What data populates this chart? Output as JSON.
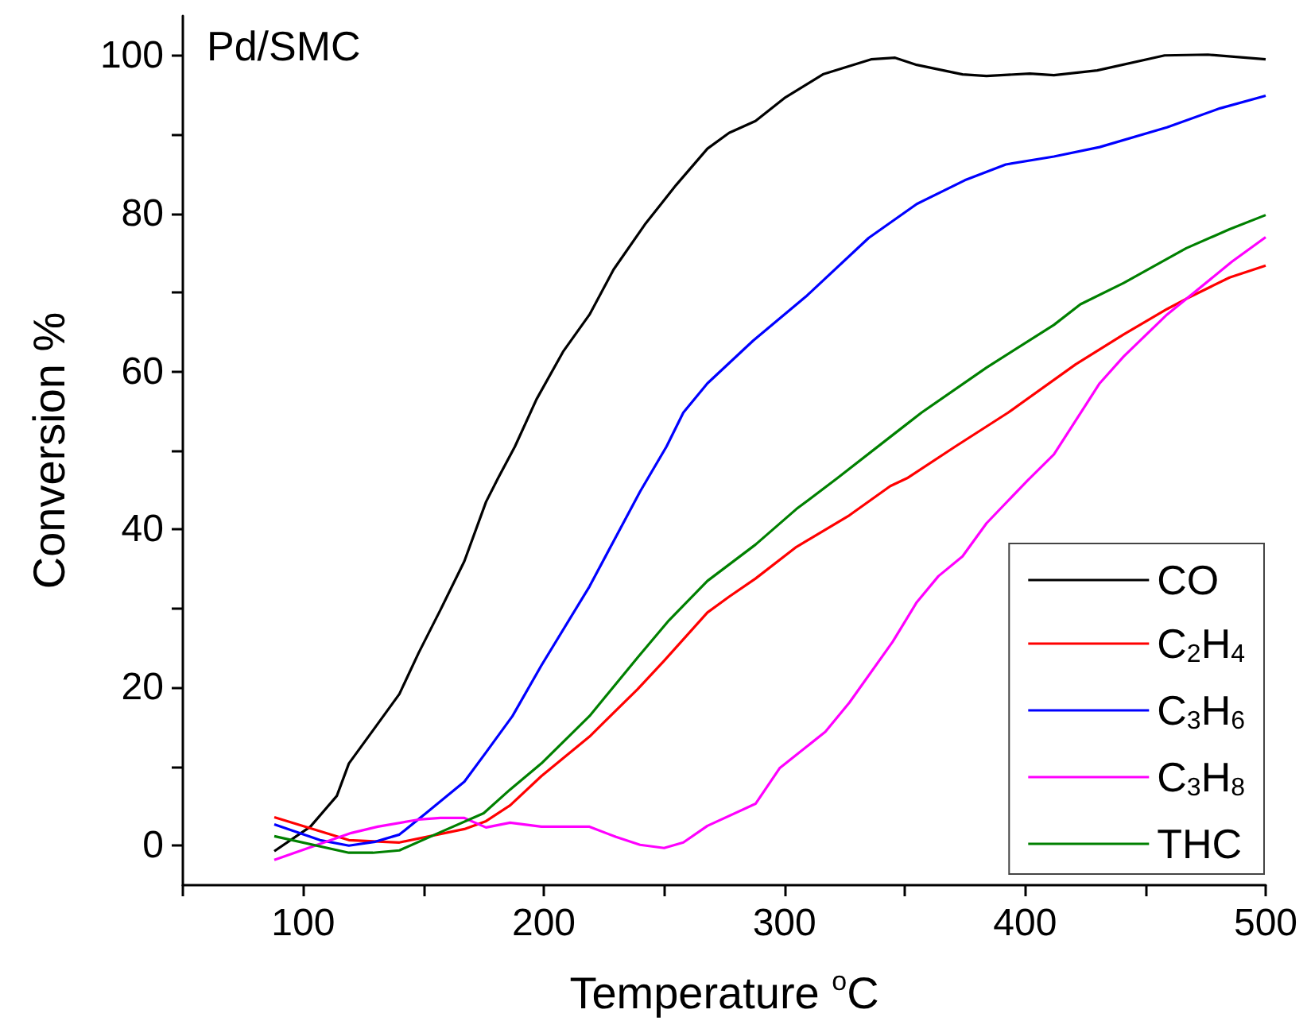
{
  "chart_data": {
    "type": "line",
    "title": "Pd/SMC",
    "xlabel": "Temperature $^{o}$C",
    "ylabel": "Conversion %",
    "xlim": [
      50,
      500
    ],
    "ylim": [
      -5,
      105
    ],
    "xticks": [
      {
        "value": 50,
        "label": null
      },
      100,
      {
        "value": 150,
        "label": null
      },
      200,
      {
        "value": 250,
        "label": null
      },
      300,
      {
        "value": 350,
        "label": null
      },
      400,
      {
        "value": 450,
        "label": null
      },
      500
    ],
    "yticks": [
      0,
      {
        "value": 10,
        "label": null
      },
      20,
      {
        "value": 30,
        "label": null
      },
      40,
      {
        "value": 50,
        "label": null
      },
      60,
      {
        "value": 70,
        "label": null
      },
      80,
      {
        "value": 90,
        "label": null
      },
      100
    ],
    "grid": false,
    "legend": "bottom right",
    "marker": "none",
    "line_style": "solid",
    "series": [
      {
        "name": "CO",
        "color": "#000000",
        "x": [
          88,
          103,
          114,
          119,
          130,
          140,
          148,
          157,
          167,
          176,
          181,
          188,
          197,
          208,
          219,
          229,
          242,
          255,
          268,
          277,
          288,
          300,
          316,
          336,
          346,
          355,
          374,
          384,
          402,
          412,
          430,
          458,
          476,
          500
        ],
        "values": [
          -0.7,
          2.4,
          6.3,
          10.4,
          15,
          19.2,
          24.4,
          29.8,
          36,
          43.5,
          46.5,
          50.5,
          56.5,
          62.5,
          67.2,
          72.9,
          78.6,
          83.6,
          88.2,
          90.2,
          91.7,
          94.6,
          97.6,
          99.5,
          99.7,
          98.8,
          97.6,
          97.4,
          97.7,
          97.5,
          98.1,
          100,
          100.1,
          99.5
        ]
      },
      {
        "name": "C$_{2}$H$_{4}$",
        "color": "#ff0000",
        "x": [
          88,
          119,
          140,
          167,
          176,
          186,
          199,
          219,
          239,
          250,
          268,
          277,
          288,
          305,
          327,
          344,
          351,
          371,
          393,
          421,
          441,
          459,
          467,
          485,
          500
        ],
        "values": [
          3.6,
          0.7,
          0.4,
          2.1,
          3.1,
          5.1,
          8.8,
          13.8,
          19.8,
          23.4,
          29.5,
          31.5,
          33.8,
          37.8,
          41.8,
          45.5,
          46.5,
          50.5,
          54.8,
          60.9,
          64.7,
          67.9,
          69.2,
          71.9,
          73.4
        ]
      },
      {
        "name": "C$_{3}$H$_{6}$",
        "color": "#0000ff",
        "x": [
          88,
          107,
          119,
          130,
          140,
          151,
          167,
          176,
          187,
          199,
          219,
          230,
          240,
          251,
          258,
          268,
          287,
          309,
          335,
          355,
          375,
          392,
          412,
          431,
          459,
          481,
          500
        ],
        "values": [
          2.7,
          0.7,
          0,
          0.5,
          1.4,
          4.1,
          8.1,
          11.8,
          16.4,
          22.8,
          32.8,
          39.1,
          44.8,
          50.5,
          54.8,
          58.5,
          63.9,
          69.5,
          76.9,
          81.2,
          84.2,
          86.2,
          87.2,
          88.4,
          90.9,
          93.3,
          94.9
        ]
      },
      {
        "name": "C$_{3}$H$_{8}$",
        "color": "#ff00ff",
        "x": [
          88,
          120,
          131,
          148,
          157,
          167,
          176,
          186,
          199,
          219,
          230,
          240,
          250,
          258,
          268,
          288,
          298,
          317,
          327,
          345,
          355,
          364,
          374,
          384,
          401,
          412,
          431,
          441,
          459,
          486,
          500
        ],
        "values": [
          -1.8,
          1.6,
          2.4,
          3.3,
          3.5,
          3.5,
          2.3,
          2.9,
          2.4,
          2.4,
          1.1,
          0.1,
          -0.3,
          0.4,
          2.5,
          5.3,
          9.8,
          14.4,
          18.1,
          25.8,
          30.8,
          34.1,
          36.6,
          40.8,
          46.2,
          49.5,
          58.5,
          61.9,
          67.2,
          73.9,
          77
        ]
      },
      {
        "name": "THC",
        "color": "#008000",
        "x": [
          88,
          119,
          129,
          140,
          157,
          175,
          186,
          199,
          219,
          239,
          252,
          268,
          288,
          305,
          322,
          346,
          357,
          384,
          412,
          423,
          441,
          467,
          485,
          500
        ],
        "values": [
          1.2,
          -0.9,
          -0.9,
          -0.6,
          1.7,
          4.1,
          7.1,
          10.4,
          16.4,
          23.8,
          28.5,
          33.5,
          38.1,
          42.6,
          46.5,
          52.2,
          54.8,
          60.5,
          65.9,
          68.5,
          71.2,
          75.6,
          78,
          79.8
        ]
      }
    ]
  }
}
